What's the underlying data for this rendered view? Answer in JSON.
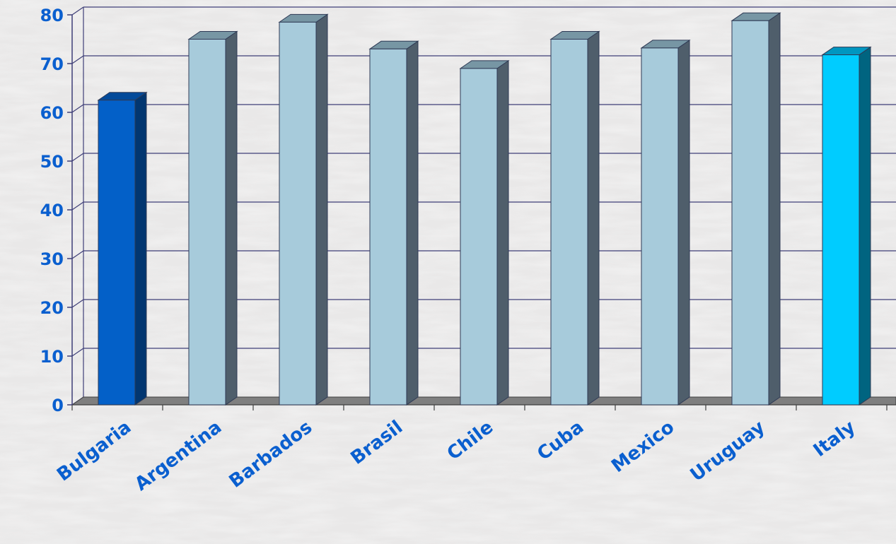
{
  "chart_data": {
    "type": "bar",
    "style": "3d-column",
    "categories": [
      "Bulgaria",
      "Argentina",
      "Barbados",
      "Brasil",
      "Chile",
      "Cuba",
      "Mexico",
      "Uruguay",
      "Italy"
    ],
    "values": [
      62.5,
      75,
      78.5,
      73,
      69,
      75,
      73.2,
      78.8,
      71.8
    ],
    "title": "",
    "xlabel": "",
    "ylabel": "",
    "ylim": [
      0,
      80
    ],
    "yticks": [
      "0",
      "10",
      "20",
      "30",
      "40",
      "50",
      "60",
      "70",
      "80"
    ],
    "grid": true,
    "legend": "none",
    "colors": {
      "default_front": "#a7cbdb",
      "default_side": "#4f5e6b",
      "default_top": "#7796a4",
      "highlight_first_front": "#0360c8",
      "highlight_first_side": "#023670",
      "highlight_first_top": "#034a9a",
      "highlight_last_front": "#00ccff",
      "highlight_last_side": "#006480",
      "highlight_last_top": "#0096c0",
      "grid": "#3f3f78",
      "floor": "#7f7f7f",
      "text": "#0a5fcf"
    }
  }
}
